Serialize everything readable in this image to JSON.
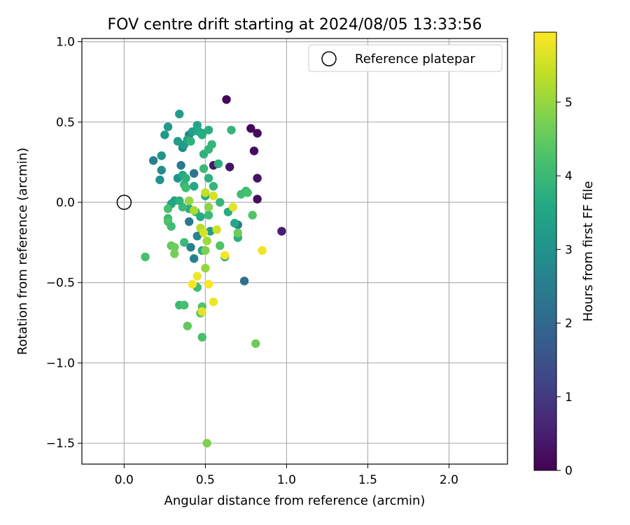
{
  "chart_data": {
    "type": "scatter",
    "title": "FOV centre drift starting at 2024/08/05 13:33:56",
    "xlabel": "Angular distance from reference (arcmin)",
    "ylabel": "Rotation from reference (arcmin)",
    "xlim": [
      -0.26,
      2.36
    ],
    "ylim": [
      -1.63,
      1.02
    ],
    "xticks": [
      0.0,
      0.5,
      1.0,
      1.5,
      2.0
    ],
    "xtick_labels": [
      "0.0",
      "0.5",
      "1.0",
      "1.5",
      "2.0"
    ],
    "yticks": [
      1.0,
      0.5,
      0.0,
      -0.5,
      -1.0,
      -1.5
    ],
    "ytick_labels": [
      "1.0",
      "0.5",
      "0.0",
      "−0.5",
      "−1.0",
      "−1.5"
    ],
    "grid": true,
    "legend": {
      "position": "top-right",
      "entries": [
        "Reference platepar"
      ]
    },
    "reference_point": {
      "x": 0.0,
      "y": 0.0,
      "label": "Reference platepar"
    },
    "colorbar": {
      "label": "Hours from first FF file",
      "range": [
        0,
        5.95
      ],
      "ticks": [
        0,
        1,
        2,
        3,
        4,
        5
      ],
      "tick_labels": [
        "0",
        "1",
        "2",
        "3",
        "4",
        "5"
      ],
      "colormap": "viridis"
    },
    "points": [
      {
        "x": 0.63,
        "y": 0.64,
        "h": 0.1
      },
      {
        "x": 0.78,
        "y": 0.46,
        "h": 0.1
      },
      {
        "x": 0.82,
        "y": 0.43,
        "h": 0.2
      },
      {
        "x": 0.8,
        "y": 0.32,
        "h": 0.2
      },
      {
        "x": 0.65,
        "y": 0.22,
        "h": 0.3
      },
      {
        "x": 0.55,
        "y": 0.23,
        "h": 0.4
      },
      {
        "x": 0.82,
        "y": 0.15,
        "h": 0.3
      },
      {
        "x": 0.82,
        "y": 0.02,
        "h": 0.2
      },
      {
        "x": 0.97,
        "y": -0.18,
        "h": 0.5
      },
      {
        "x": 0.74,
        "y": -0.49,
        "h": 2.2
      },
      {
        "x": 0.7,
        "y": -0.14,
        "h": 2.5
      },
      {
        "x": 0.43,
        "y": -0.35,
        "h": 2.6
      },
      {
        "x": 0.41,
        "y": -0.28,
        "h": 2.6
      },
      {
        "x": 0.45,
        "y": -0.21,
        "h": 2.7
      },
      {
        "x": 0.4,
        "y": -0.12,
        "h": 2.4
      },
      {
        "x": 0.43,
        "y": 0.18,
        "h": 2.3
      },
      {
        "x": 0.35,
        "y": 0.23,
        "h": 2.4
      },
      {
        "x": 0.18,
        "y": 0.26,
        "h": 2.6
      },
      {
        "x": 0.4,
        "y": 0.42,
        "h": 2.6
      },
      {
        "x": 0.36,
        "y": 0.34,
        "h": 2.8
      },
      {
        "x": 0.23,
        "y": 0.2,
        "h": 2.9
      },
      {
        "x": 0.22,
        "y": 0.14,
        "h": 3.0
      },
      {
        "x": 0.33,
        "y": 0.15,
        "h": 3.0
      },
      {
        "x": 0.23,
        "y": 0.29,
        "h": 3.1
      },
      {
        "x": 0.34,
        "y": 0.55,
        "h": 3.3
      },
      {
        "x": 0.27,
        "y": 0.47,
        "h": 3.2
      },
      {
        "x": 0.25,
        "y": 0.42,
        "h": 3.1
      },
      {
        "x": 0.33,
        "y": 0.38,
        "h": 3.3
      },
      {
        "x": 0.37,
        "y": 0.36,
        "h": 3.3
      },
      {
        "x": 0.39,
        "y": 0.39,
        "h": 3.5
      },
      {
        "x": 0.42,
        "y": 0.44,
        "h": 3.4
      },
      {
        "x": 0.45,
        "y": 0.48,
        "h": 3.5
      },
      {
        "x": 0.46,
        "y": 0.44,
        "h": 3.6
      },
      {
        "x": 0.48,
        "y": 0.43,
        "h": 3.5
      },
      {
        "x": 0.52,
        "y": 0.45,
        "h": 3.7
      },
      {
        "x": 0.48,
        "y": 0.42,
        "h": 3.7
      },
      {
        "x": 0.41,
        "y": 0.38,
        "h": 3.8
      },
      {
        "x": 0.49,
        "y": 0.3,
        "h": 3.8
      },
      {
        "x": 0.52,
        "y": 0.33,
        "h": 3.9
      },
      {
        "x": 0.54,
        "y": 0.36,
        "h": 3.9
      },
      {
        "x": 0.58,
        "y": 0.24,
        "h": 3.7
      },
      {
        "x": 0.49,
        "y": 0.21,
        "h": 4.0
      },
      {
        "x": 0.66,
        "y": 0.45,
        "h": 3.9
      },
      {
        "x": 0.36,
        "y": 0.17,
        "h": 3.6
      },
      {
        "x": 0.31,
        "y": 0.01,
        "h": 3.4
      },
      {
        "x": 0.29,
        "y": -0.01,
        "h": 3.5
      },
      {
        "x": 0.37,
        "y": 0.11,
        "h": 3.9
      },
      {
        "x": 0.38,
        "y": 0.09,
        "h": 4.1
      },
      {
        "x": 0.43,
        "y": 0.1,
        "h": 3.6
      },
      {
        "x": 0.38,
        "y": 0.15,
        "h": 3.8
      },
      {
        "x": 0.4,
        "y": -0.04,
        "h": 3.7
      },
      {
        "x": 0.36,
        "y": -0.03,
        "h": 4.0
      },
      {
        "x": 0.34,
        "y": 0.01,
        "h": 3.8
      },
      {
        "x": 0.44,
        "y": -0.06,
        "h": 3.9
      },
      {
        "x": 0.47,
        "y": -0.09,
        "h": 3.6
      },
      {
        "x": 0.5,
        "y": 0.04,
        "h": 3.7
      },
      {
        "x": 0.52,
        "y": 0.15,
        "h": 3.8
      },
      {
        "x": 0.55,
        "y": 0.1,
        "h": 3.9
      },
      {
        "x": 0.59,
        "y": 0.0,
        "h": 3.9
      },
      {
        "x": 0.52,
        "y": -0.08,
        "h": 4.0
      },
      {
        "x": 0.53,
        "y": -0.18,
        "h": 3.3
      },
      {
        "x": 0.48,
        "y": -0.3,
        "h": 3.6
      },
      {
        "x": 0.62,
        "y": -0.34,
        "h": 3.4
      },
      {
        "x": 0.64,
        "y": -0.06,
        "h": 3.7
      },
      {
        "x": 0.68,
        "y": -0.13,
        "h": 3.6
      },
      {
        "x": 0.7,
        "y": -0.22,
        "h": 3.8
      },
      {
        "x": 0.72,
        "y": 0.05,
        "h": 4.1
      },
      {
        "x": 0.75,
        "y": 0.07,
        "h": 4.0
      },
      {
        "x": 0.76,
        "y": 0.06,
        "h": 4.2
      },
      {
        "x": 0.79,
        "y": -0.08,
        "h": 4.3
      },
      {
        "x": 0.7,
        "y": -0.19,
        "h": 4.6
      },
      {
        "x": 0.59,
        "y": -0.27,
        "h": 4.3
      },
      {
        "x": 0.27,
        "y": -0.04,
        "h": 4.2
      },
      {
        "x": 0.27,
        "y": -0.1,
        "h": 4.0
      },
      {
        "x": 0.27,
        "y": -0.12,
        "h": 4.3
      },
      {
        "x": 0.29,
        "y": -0.15,
        "h": 4.1
      },
      {
        "x": 0.37,
        "y": -0.25,
        "h": 4.0
      },
      {
        "x": 0.29,
        "y": -0.27,
        "h": 4.5
      },
      {
        "x": 0.31,
        "y": -0.28,
        "h": 4.6
      },
      {
        "x": 0.31,
        "y": -0.32,
        "h": 4.7
      },
      {
        "x": 0.13,
        "y": -0.34,
        "h": 4.2
      },
      {
        "x": 0.34,
        "y": -0.64,
        "h": 4.0
      },
      {
        "x": 0.37,
        "y": -0.64,
        "h": 4.2
      },
      {
        "x": 0.45,
        "y": -0.53,
        "h": 4.1
      },
      {
        "x": 0.47,
        "y": -0.69,
        "h": 4.4
      },
      {
        "x": 0.48,
        "y": -0.65,
        "h": 4.3
      },
      {
        "x": 0.39,
        "y": -0.77,
        "h": 4.5
      },
      {
        "x": 0.48,
        "y": -0.84,
        "h": 4.2
      },
      {
        "x": 0.81,
        "y": -0.88,
        "h": 4.6
      },
      {
        "x": 0.51,
        "y": -1.5,
        "h": 4.8
      },
      {
        "x": 0.4,
        "y": 0.01,
        "h": 5.0
      },
      {
        "x": 0.43,
        "y": -0.05,
        "h": 5.2
      },
      {
        "x": 0.5,
        "y": 0.06,
        "h": 5.4
      },
      {
        "x": 0.52,
        "y": -0.03,
        "h": 4.9
      },
      {
        "x": 0.55,
        "y": 0.04,
        "h": 5.6
      },
      {
        "x": 0.57,
        "y": -0.17,
        "h": 5.5
      },
      {
        "x": 0.47,
        "y": -0.16,
        "h": 5.3
      },
      {
        "x": 0.49,
        "y": -0.19,
        "h": 5.6
      },
      {
        "x": 0.51,
        "y": -0.24,
        "h": 5.1
      },
      {
        "x": 0.5,
        "y": -0.3,
        "h": 4.8
      },
      {
        "x": 0.5,
        "y": -0.41,
        "h": 5.0
      },
      {
        "x": 0.45,
        "y": -0.46,
        "h": 5.8
      },
      {
        "x": 0.42,
        "y": -0.51,
        "h": 5.9
      },
      {
        "x": 0.52,
        "y": -0.51,
        "h": 5.9
      },
      {
        "x": 0.48,
        "y": -0.68,
        "h": 5.7
      },
      {
        "x": 0.55,
        "y": -0.62,
        "h": 5.8
      },
      {
        "x": 0.62,
        "y": -0.33,
        "h": 5.9
      },
      {
        "x": 0.67,
        "y": -0.03,
        "h": 5.7
      },
      {
        "x": 0.85,
        "y": -0.3,
        "h": 5.8
      }
    ]
  }
}
